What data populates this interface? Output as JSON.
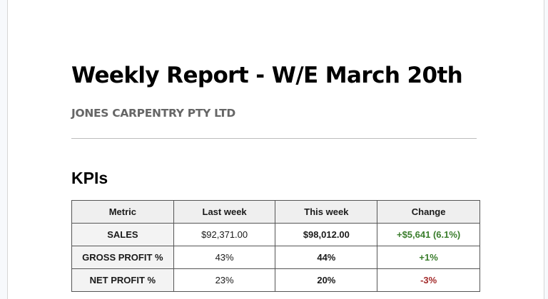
{
  "document": {
    "title": "Weekly Report - W/E March 20th",
    "subtitle": "JONES CARPENTRY PTY LTD",
    "section_heading": "KPIs"
  },
  "kpi_table": {
    "headers": [
      "Metric",
      "Last week",
      "This week",
      "Change"
    ],
    "rows": [
      {
        "metric": "SALES",
        "last_week": "$92,371.00",
        "this_week": "$98,012.00",
        "change": "+$5,641 (6.1%)",
        "trend": "positive"
      },
      {
        "metric": "GROSS PROFIT %",
        "last_week": "43%",
        "this_week": "44%",
        "change": "+1%",
        "trend": "positive"
      },
      {
        "metric": "NET PROFIT %",
        "last_week": "23%",
        "this_week": "20%",
        "change": "-3%",
        "trend": "negative"
      }
    ]
  },
  "colors": {
    "positive": "#3a7d2c",
    "negative": "#a32b2b",
    "subtitle": "#666666",
    "header_bg": "#efefef"
  }
}
